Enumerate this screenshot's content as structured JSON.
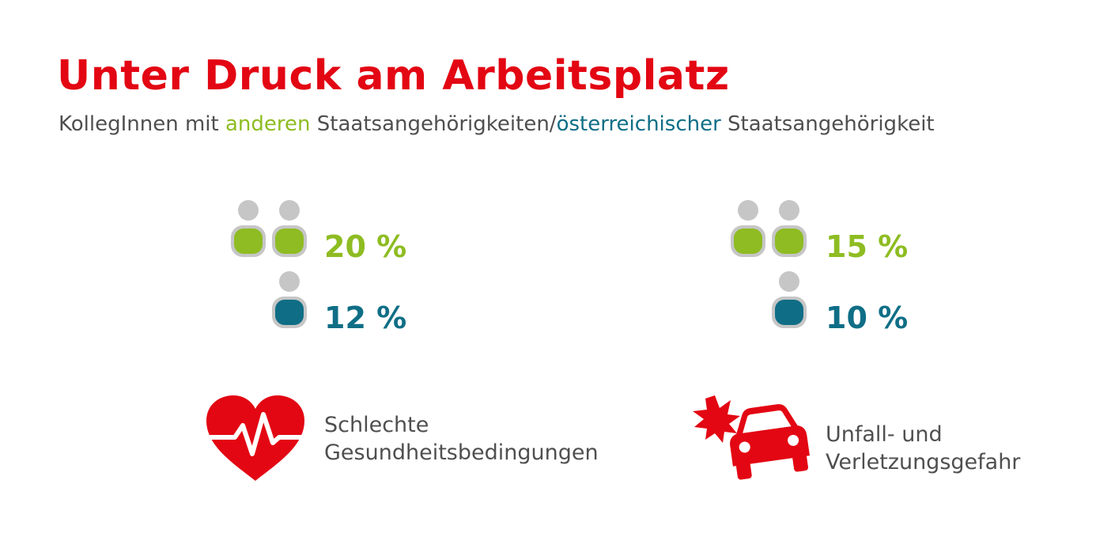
{
  "title": "Unter Druck am Arbeitsplatz",
  "subtitle": {
    "part1": "KollegInnen mit ",
    "highlight_other": "anderen",
    "part2": " Staatsangehörigkeiten/",
    "highlight_austrian": "österreichischer",
    "part3": " Staatsangehörigkeit"
  },
  "colors": {
    "title": "#e30613",
    "other_nationality": "#8ebc22",
    "austrian_nationality": "#0f6e86",
    "icon_red": "#e30613",
    "head_grey": "#c6c6c6"
  },
  "chart_data": [
    {
      "type": "pictogram",
      "caption_lines": [
        "Schlechte",
        "Gesundheitsbedingungen"
      ],
      "icon": "heart-pulse-icon",
      "series": [
        {
          "group": "anderen",
          "value": 20,
          "label": "20 %"
        },
        {
          "group": "österreichischer",
          "value": 12,
          "label": "12 %"
        }
      ]
    },
    {
      "type": "pictogram",
      "caption_lines": [
        "Unfall- und",
        "Verletzungsgefahr"
      ],
      "icon": "car-crash-icon",
      "series": [
        {
          "group": "anderen",
          "value": 15,
          "label": "15 %"
        },
        {
          "group": "österreichischer",
          "value": 10,
          "label": "10 %"
        }
      ]
    }
  ]
}
